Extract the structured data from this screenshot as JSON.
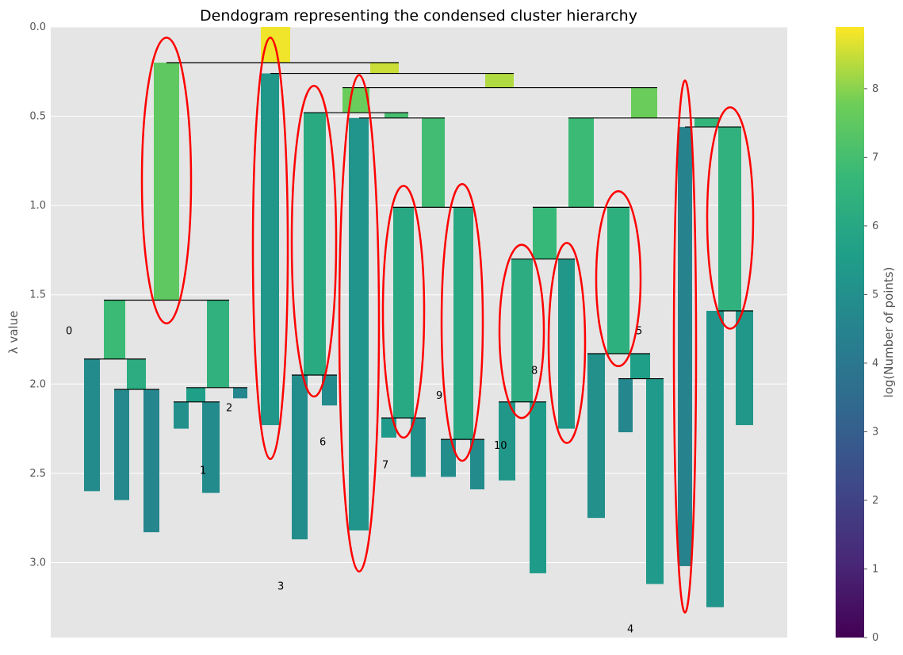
{
  "chart_data": {
    "type": "dendrogram",
    "title": "Dendogram representing the condensed cluster hierarchy",
    "ylabel": "λ value",
    "ylim": [
      0,
      3.42
    ],
    "yticks": [
      "0.0",
      "0.5",
      "1.0",
      "1.5",
      "2.0",
      "2.5",
      "3.0"
    ],
    "colorbar": {
      "label": "log(Number of points)",
      "range": [
        0,
        8.9
      ],
      "ticks": [
        "0",
        "1",
        "2",
        "3",
        "4",
        "5",
        "6",
        "7",
        "8"
      ]
    },
    "colors": {
      "background": "#e5e5e5",
      "grid": "#ffffff",
      "selection": "#ff0000",
      "link": "#000000"
    },
    "cluster_labels": [
      "0",
      "1",
      "2",
      "3",
      "4",
      "5",
      "6",
      "7",
      "8",
      "9",
      "10"
    ],
    "selected_clusters": 11
  }
}
